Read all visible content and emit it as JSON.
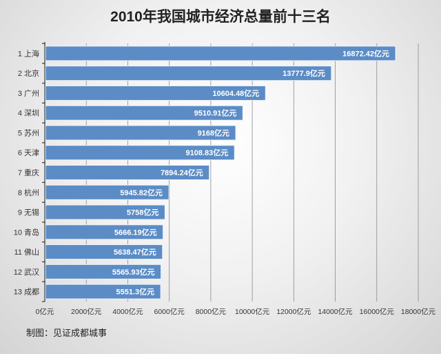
{
  "chart_data": {
    "type": "bar",
    "orientation": "horizontal",
    "title": "2010年我国城市经济总量前十三名",
    "categories": [
      "1 上海",
      "2 北京",
      "3 广州",
      "4 深圳",
      "5 苏州",
      "6 天津",
      "7 重庆",
      "8 杭州",
      "9 无锡",
      "10 青岛",
      "11 佛山",
      "12 武汉",
      "13 成都"
    ],
    "values": [
      16872.42,
      13777.9,
      10604.48,
      9510.91,
      9168,
      9108.83,
      7894.24,
      5945.82,
      5758,
      5666.19,
      5638.47,
      5565.93,
      5551.3
    ],
    "data_labels": [
      "16872.42亿元",
      "13777.9亿元",
      "10604.48亿元",
      "9510.91亿元",
      "9168亿元",
      "9108.83亿元",
      "7894.24亿元",
      "5945.82亿元",
      "5758亿元",
      "5666.19亿元",
      "5638.47亿元",
      "5565.93亿元",
      "5551.3亿元"
    ],
    "x_ticks": [
      "0亿元",
      "2000亿元",
      "4000亿元",
      "6000亿元",
      "8000亿元",
      "10000亿元",
      "12000亿元",
      "14000亿元",
      "16000亿元",
      "18000亿元"
    ],
    "xlim": [
      0,
      18000
    ],
    "xlabel": "",
    "ylabel": "",
    "grid": "vertical",
    "bar_color": "#5b8cc6"
  },
  "footer": "制图：见证成都城事"
}
